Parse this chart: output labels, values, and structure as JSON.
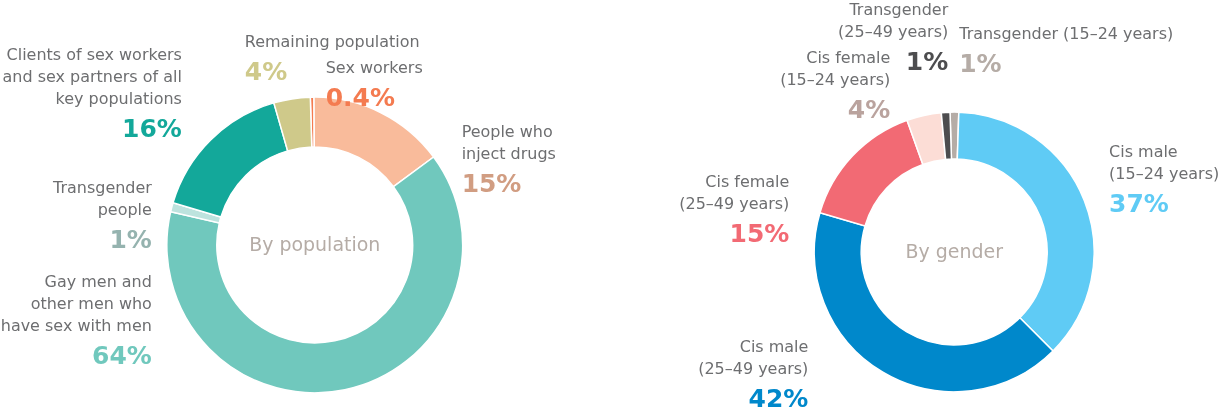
{
  "chart_data": [
    {
      "type": "donut",
      "title": "By population",
      "categories": [
        "Sex workers",
        "People who inject drugs",
        "Gay men and other men who have sex with men",
        "Transgender people",
        "Clients of sex workers and sex partners of all key populations",
        "Remaining population"
      ],
      "values": [
        0.4,
        15,
        64,
        1,
        16,
        4
      ],
      "colors": [
        "#f47b50",
        "#f9bb9b",
        "#70c8bd",
        "#bde3de",
        "#13a89a",
        "#cfc98a"
      ],
      "value_labels": [
        "0.4%",
        "15%",
        "64%",
        "1%",
        "16%",
        "4%"
      ]
    },
    {
      "type": "donut",
      "title": "By gender",
      "categories": [
        "Transgender (15–24 years)",
        "Cis male (15–24 years)",
        "Cis male (25–49 years)",
        "Cis female (25–49 years)",
        "Cis female (15–24 years)",
        "Transgender (25–49 years)"
      ],
      "values": [
        1,
        37,
        42,
        15,
        4,
        1
      ],
      "colors": [
        "#b5aca6",
        "#5fcbf5",
        "#0088cb",
        "#f26a74",
        "#fcddd6",
        "#4d4d4f"
      ],
      "value_labels": [
        "1%",
        "37%",
        "42%",
        "15%",
        "4%",
        "1%"
      ]
    }
  ]
}
